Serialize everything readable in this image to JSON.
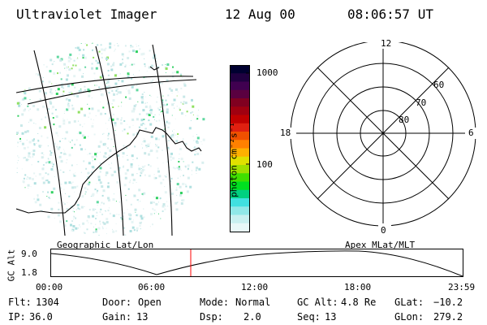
{
  "header": {
    "instrument": "Ultraviolet Imager",
    "date": "12 Aug 00",
    "time": "08:06:57 UT"
  },
  "colorbar": {
    "unit_label": "photon cm⁻²s⁻¹",
    "tick_labels": [
      "1000",
      "100"
    ],
    "colors": [
      "#000030",
      "#200040",
      "#400050",
      "#5a0040",
      "#800020",
      "#a00010",
      "#c00000",
      "#e02010",
      "#f05000",
      "#ff8000",
      "#ffb000",
      "#e0e000",
      "#a0e000",
      "#40e000",
      "#00e020",
      "#00d080",
      "#40e0e0",
      "#90e8e8",
      "#c8f0f0",
      "#e8f8f8"
    ]
  },
  "polar_plot": {
    "mlt_labels": {
      "top": "12",
      "left": "18",
      "right": "6",
      "bottom": "0"
    },
    "lat_labels": [
      "60",
      "70",
      "80"
    ]
  },
  "map_labels": {
    "left": "Geographic Lat/Lon",
    "right": "Apex MLat/MLT"
  },
  "altitude_plot": {
    "axis_label": "GC Alt",
    "y_ticks": [
      "9.0",
      "1.8"
    ],
    "x_ticks": [
      "00:00",
      "06:00",
      "12:00",
      "18:00",
      "23:59"
    ],
    "current_time_hours": 8.12,
    "marker_color": "#ff0000"
  },
  "info": {
    "row1": [
      {
        "label": "Flt:",
        "value": "1304"
      },
      {
        "label": "Door:",
        "value": "Open"
      },
      {
        "label": "Mode:",
        "value": "Normal"
      },
      {
        "label": "GC Alt:",
        "value": "4.8 Re"
      },
      {
        "label": "GLat:",
        "value": "−10.2"
      }
    ],
    "row2": [
      {
        "label": "IP:",
        "value": "36.0"
      },
      {
        "label": "Gain:",
        "value": "13"
      },
      {
        "label": "Dsp:",
        "value": "2.0"
      },
      {
        "label": "Seq:",
        "value": "13"
      },
      {
        "label": "GLon:",
        "value": "279.2"
      }
    ]
  }
}
